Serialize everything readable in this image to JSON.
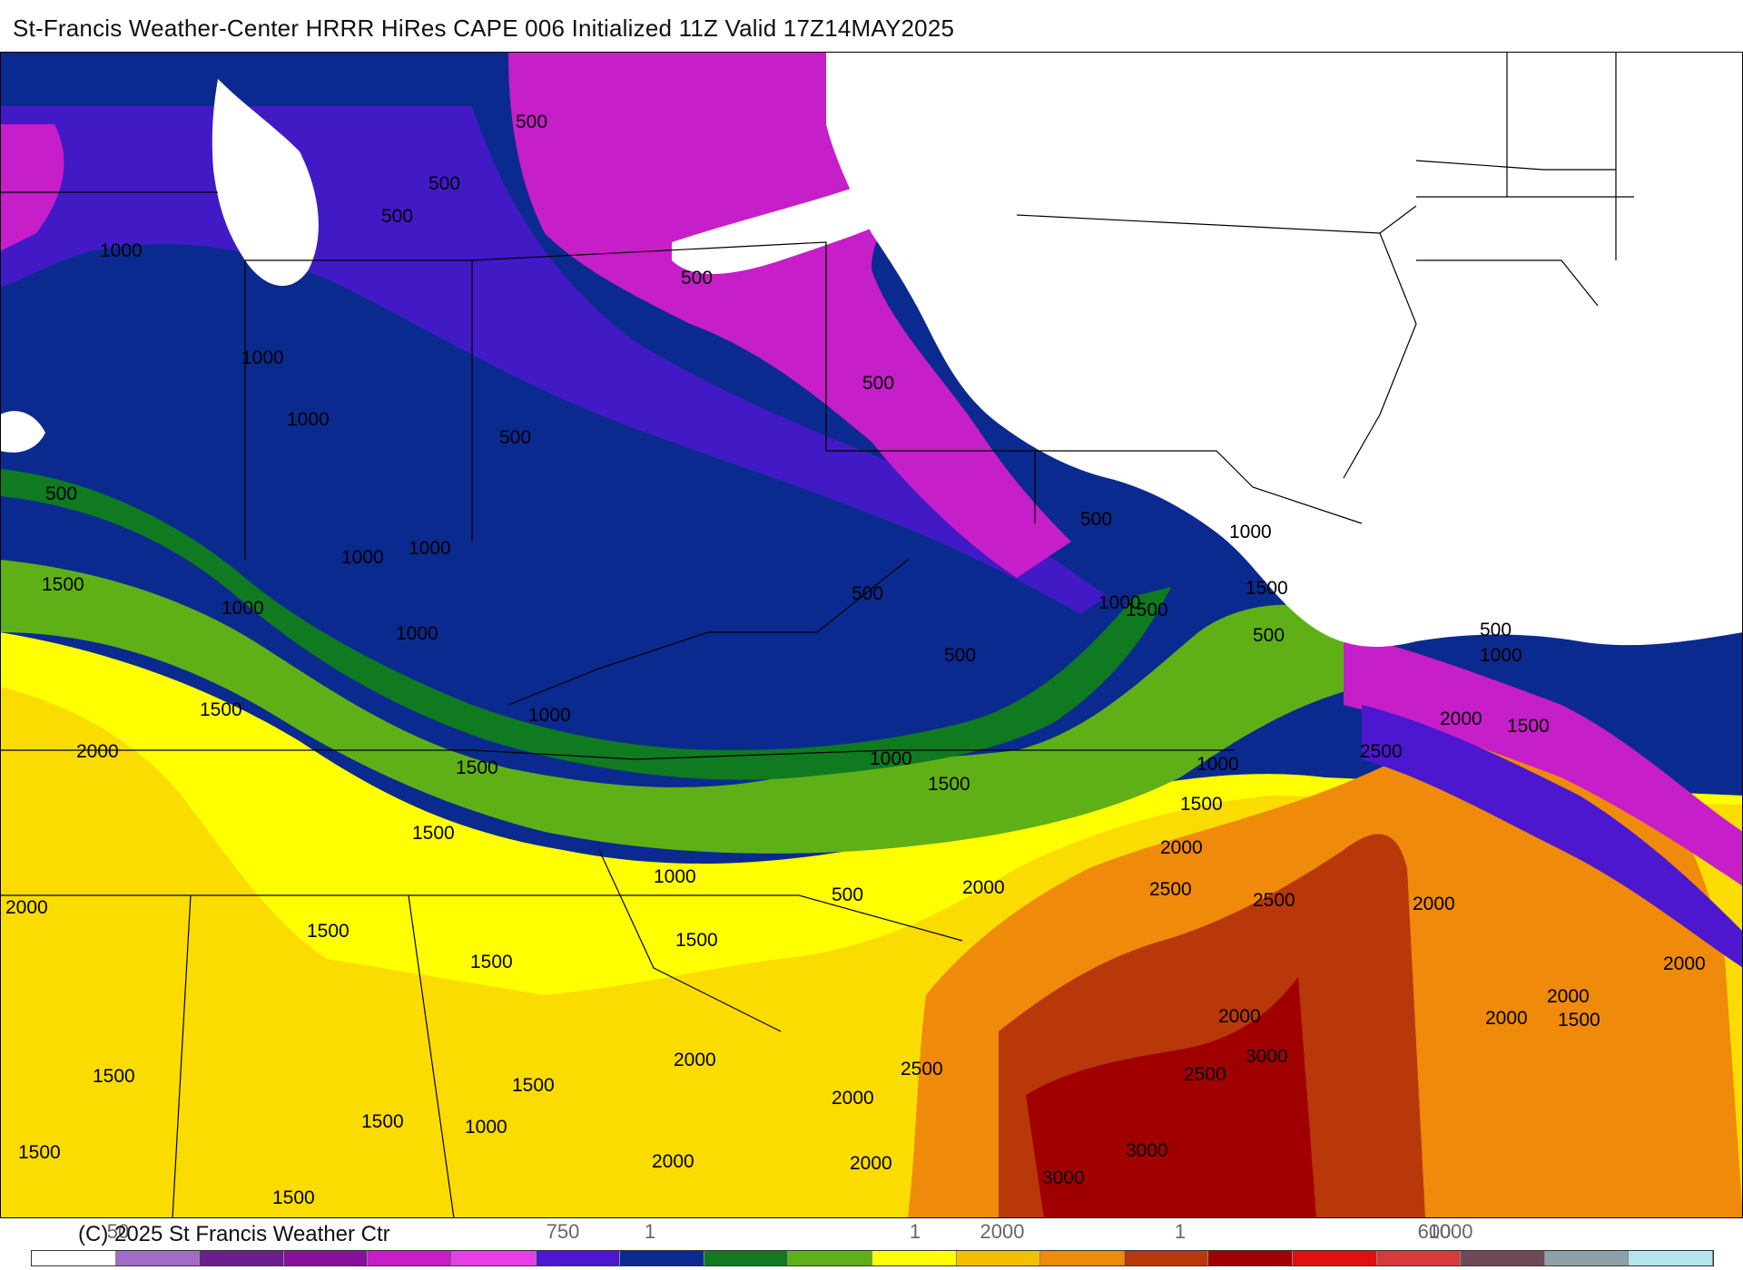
{
  "title": "St-Francis Weather-Center HRRR HiRes CAPE  006 Initialized  11Z Valid 17Z14MAY2025",
  "copyright": "(C) 2025 St Francis Weather Ctr",
  "map": {
    "parameter": "CAPE",
    "region": "Eastern United States and western Atlantic",
    "contour_labels": [
      "500",
      "1000",
      "1500",
      "2000",
      "2500",
      "3000"
    ]
  },
  "legend": {
    "colors": [
      "#ffffff",
      "#a36bc9",
      "#6b1e8f",
      "#8a0f9e",
      "#c61ec9",
      "#e63fe6",
      "#4c17cf",
      "#0b2a8f",
      "#0f7a20",
      "#5fb017",
      "#ffff00",
      "#f5bf00",
      "#ef8a0a",
      "#b8380a",
      "#a00000",
      "#e01010",
      "#d63a3a",
      "#6e4a59",
      "#8ea1a8",
      "#b3e6ed"
    ],
    "tick_labels": [
      "50",
      "750",
      "1",
      "1",
      "2000",
      "1",
      "600",
      "1000"
    ]
  }
}
